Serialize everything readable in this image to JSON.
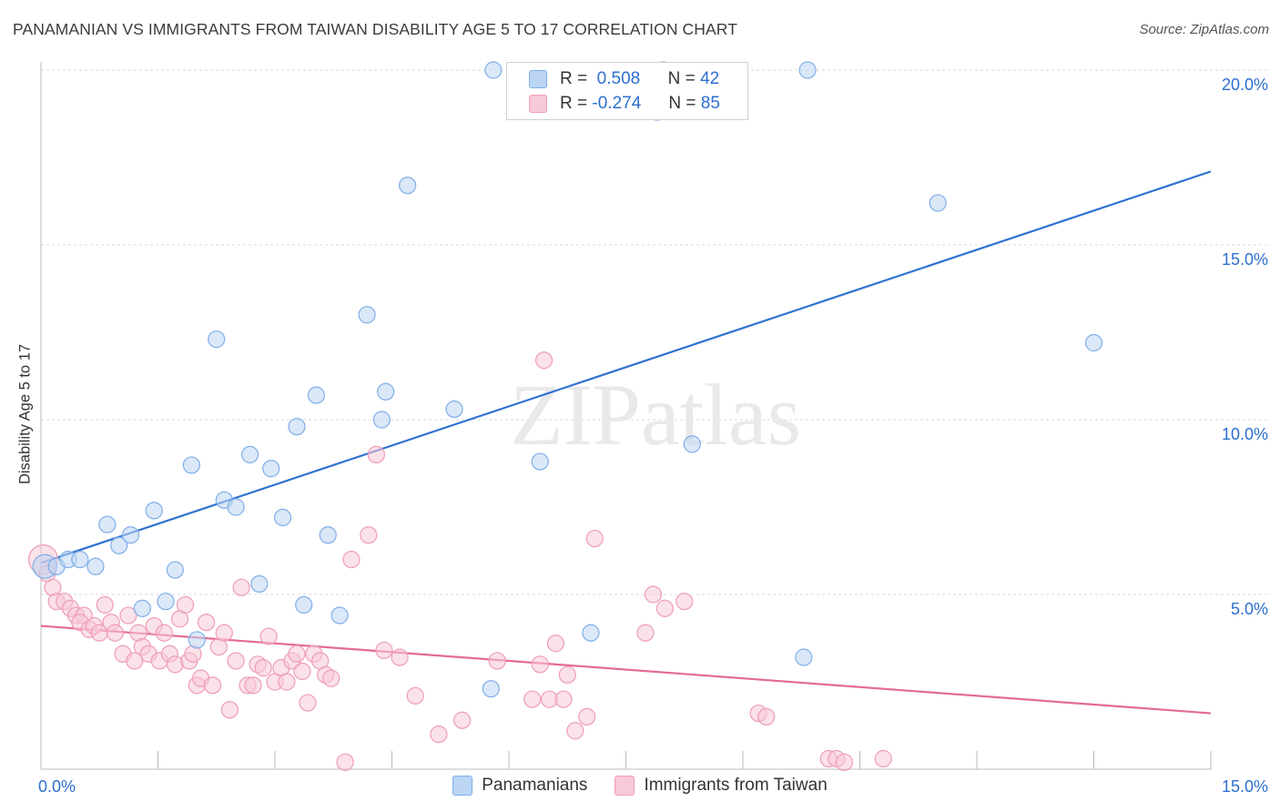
{
  "chart_data": {
    "type": "scatter",
    "title": "PANAMANIAN VS IMMIGRANTS FROM TAIWAN DISABILITY AGE 5 TO 17 CORRELATION CHART",
    "source": "Source: ZipAtlas.com",
    "xlabel": "",
    "ylabel": "Disability Age 5 to 17",
    "xlim": [
      0,
      15
    ],
    "ylim": [
      0,
      20
    ],
    "x_tick_labels": [
      "0.0%",
      "15.0%"
    ],
    "y_tick_labels": [
      "5.0%",
      "10.0%",
      "15.0%",
      "20.0%"
    ],
    "watermark": "ZIPatlas",
    "legend": [
      {
        "r_label": "R =",
        "r_value": "0.508",
        "n_label": "N =",
        "n_value": "42"
      },
      {
        "r_label": "R =",
        "r_value": "-0.274",
        "n_label": "N =",
        "n_value": "85"
      }
    ],
    "series": [
      {
        "name": "Panamanians",
        "color": "#7eaee8",
        "fill": "#bcd5f3",
        "line_color": "#2f72d1",
        "trend": {
          "x": [
            0,
            15
          ],
          "y": [
            5.9,
            17.1
          ]
        },
        "points": [
          [
            0.05,
            5.8
          ],
          [
            0.2,
            5.8
          ],
          [
            0.35,
            6.0
          ],
          [
            0.5,
            6.0
          ],
          [
            0.7,
            5.8
          ],
          [
            0.85,
            7.0
          ],
          [
            1.0,
            6.4
          ],
          [
            1.15,
            6.7
          ],
          [
            1.3,
            4.6
          ],
          [
            1.45,
            7.4
          ],
          [
            1.6,
            4.8
          ],
          [
            1.72,
            5.7
          ],
          [
            1.93,
            8.7
          ],
          [
            2.0,
            3.7
          ],
          [
            2.25,
            12.3
          ],
          [
            2.35,
            7.7
          ],
          [
            2.5,
            7.5
          ],
          [
            2.68,
            9.0
          ],
          [
            2.8,
            5.3
          ],
          [
            2.95,
            8.6
          ],
          [
            3.1,
            7.2
          ],
          [
            3.28,
            9.8
          ],
          [
            3.37,
            4.7
          ],
          [
            3.53,
            10.7
          ],
          [
            3.68,
            6.7
          ],
          [
            3.83,
            4.4
          ],
          [
            4.18,
            13.0
          ],
          [
            4.37,
            10.0
          ],
          [
            4.42,
            10.8
          ],
          [
            4.7,
            16.7
          ],
          [
            5.3,
            10.3
          ],
          [
            5.77,
            2.3
          ],
          [
            5.8,
            20.0
          ],
          [
            6.4,
            8.8
          ],
          [
            7.05,
            3.9
          ],
          [
            7.9,
            18.8
          ],
          [
            7.98,
            20.0
          ],
          [
            8.35,
            9.3
          ],
          [
            9.78,
            3.2
          ],
          [
            9.83,
            20.0
          ],
          [
            11.5,
            16.2
          ],
          [
            13.5,
            12.2
          ]
        ]
      },
      {
        "name": "Immigrants from Taiwan",
        "color": "#ee9db6",
        "fill": "#f8c9d7",
        "line_color": "#e46b93",
        "trend": {
          "x": [
            0,
            15
          ],
          "y": [
            4.1,
            1.6
          ]
        },
        "points": [
          [
            0.03,
            6.0
          ],
          [
            0.08,
            5.6
          ],
          [
            0.15,
            5.2
          ],
          [
            0.2,
            4.8
          ],
          [
            0.3,
            4.8
          ],
          [
            0.38,
            4.6
          ],
          [
            0.45,
            4.4
          ],
          [
            0.55,
            4.4
          ],
          [
            0.5,
            4.2
          ],
          [
            0.62,
            4.0
          ],
          [
            0.68,
            4.1
          ],
          [
            0.75,
            3.9
          ],
          [
            0.82,
            4.7
          ],
          [
            0.9,
            4.2
          ],
          [
            0.95,
            3.9
          ],
          [
            1.05,
            3.3
          ],
          [
            1.12,
            4.4
          ],
          [
            1.2,
            3.1
          ],
          [
            1.25,
            3.9
          ],
          [
            1.3,
            3.5
          ],
          [
            1.38,
            3.3
          ],
          [
            1.45,
            4.1
          ],
          [
            1.52,
            3.1
          ],
          [
            1.58,
            3.9
          ],
          [
            1.65,
            3.3
          ],
          [
            1.72,
            3.0
          ],
          [
            1.78,
            4.3
          ],
          [
            1.85,
            4.7
          ],
          [
            1.9,
            3.1
          ],
          [
            1.95,
            3.3
          ],
          [
            2.0,
            2.4
          ],
          [
            2.05,
            2.6
          ],
          [
            2.12,
            4.2
          ],
          [
            2.2,
            2.4
          ],
          [
            2.28,
            3.5
          ],
          [
            2.35,
            3.9
          ],
          [
            2.42,
            1.7
          ],
          [
            2.5,
            3.1
          ],
          [
            2.57,
            5.2
          ],
          [
            2.65,
            2.4
          ],
          [
            2.72,
            2.4
          ],
          [
            2.78,
            3.0
          ],
          [
            2.85,
            2.9
          ],
          [
            2.92,
            3.8
          ],
          [
            3.0,
            2.5
          ],
          [
            3.08,
            2.9
          ],
          [
            3.15,
            2.5
          ],
          [
            3.22,
            3.1
          ],
          [
            3.28,
            3.3
          ],
          [
            3.35,
            2.8
          ],
          [
            3.42,
            1.9
          ],
          [
            3.5,
            3.3
          ],
          [
            3.58,
            3.1
          ],
          [
            3.65,
            2.7
          ],
          [
            3.72,
            2.6
          ],
          [
            3.9,
            0.2
          ],
          [
            3.98,
            6.0
          ],
          [
            4.2,
            6.7
          ],
          [
            4.3,
            9.0
          ],
          [
            4.4,
            3.4
          ],
          [
            4.6,
            3.2
          ],
          [
            4.8,
            2.1
          ],
          [
            5.1,
            1.0
          ],
          [
            5.4,
            1.4
          ],
          [
            5.85,
            3.1
          ],
          [
            6.3,
            2.0
          ],
          [
            6.4,
            3.0
          ],
          [
            6.45,
            11.7
          ],
          [
            6.52,
            2.0
          ],
          [
            6.6,
            3.6
          ],
          [
            6.7,
            2.0
          ],
          [
            6.75,
            2.7
          ],
          [
            6.85,
            1.1
          ],
          [
            7.0,
            1.5
          ],
          [
            7.1,
            6.6
          ],
          [
            7.75,
            3.9
          ],
          [
            7.85,
            5.0
          ],
          [
            8.0,
            4.6
          ],
          [
            8.25,
            4.8
          ],
          [
            9.2,
            1.6
          ],
          [
            9.3,
            1.5
          ],
          [
            10.1,
            0.3
          ],
          [
            10.2,
            0.3
          ],
          [
            10.3,
            0.2
          ],
          [
            10.8,
            0.3
          ]
        ]
      }
    ]
  }
}
